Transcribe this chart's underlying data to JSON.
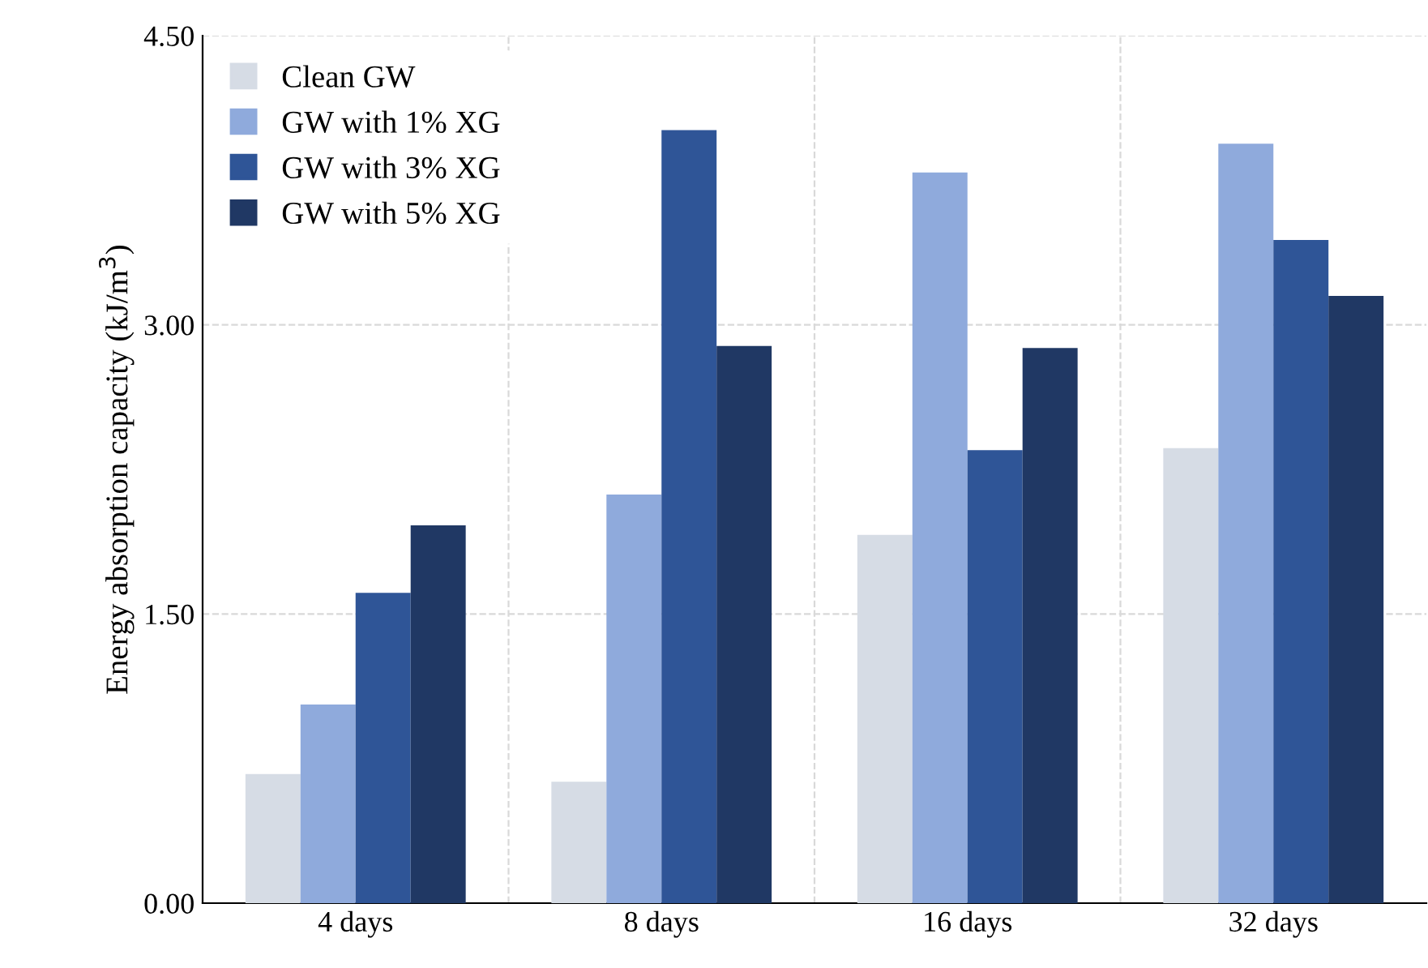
{
  "chart_data": {
    "type": "bar",
    "ylabel": "Energy absorption capacity (kJ/m$^{3}$)",
    "categories": [
      "4 days",
      "8 days",
      "16 days",
      "32 days"
    ],
    "series": [
      {
        "name": "Clean GW",
        "color": "#d6dce5",
        "values": [
          0.67,
          0.63,
          1.91,
          2.36
        ]
      },
      {
        "name": "GW with 1% XG",
        "color": "#8faadc",
        "values": [
          1.03,
          2.12,
          3.79,
          3.94
        ]
      },
      {
        "name": "GW with 3% XG",
        "color": "#2f5597",
        "values": [
          1.61,
          4.01,
          2.35,
          3.44
        ]
      },
      {
        "name": "GW with 5% XG",
        "color": "#203864",
        "values": [
          1.96,
          2.89,
          2.88,
          3.15
        ]
      }
    ],
    "ylim": [
      0,
      4.5
    ],
    "yticks": [
      {
        "value": 0,
        "label": "0.00"
      },
      {
        "value": 1.5,
        "label": "1.50"
      },
      {
        "value": 3,
        "label": "3.00"
      },
      {
        "value": 4.5,
        "label": "4.50"
      }
    ],
    "grid": true,
    "legend": "top left"
  }
}
